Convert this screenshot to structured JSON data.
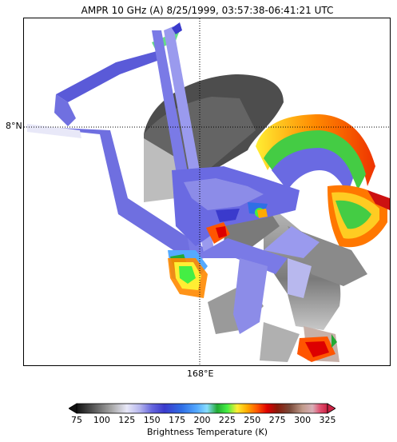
{
  "title": "AMPR 10 GHz (A) 8/25/1999, 03:57:38-06:41:21 UTC",
  "map": {
    "lat_label": "8°N",
    "lon_label": "168°E",
    "gridlines": "dotted",
    "gridline_color": "#000000"
  },
  "colorbar": {
    "label": "Brightness Temperature (K)",
    "ticks": [
      "75",
      "100",
      "125",
      "150",
      "175",
      "200",
      "225",
      "250",
      "275",
      "300",
      "325"
    ],
    "range": [
      75,
      325
    ],
    "extend": "both",
    "colors": [
      "#111111",
      "#5a5a5a",
      "#a8a8a8",
      "#e8e8f8",
      "#b8b8ee",
      "#6666dd",
      "#3a3acc",
      "#2f6fe6",
      "#55aaff",
      "#88ddff",
      "#22aa33",
      "#44ee44",
      "#ffee33",
      "#ffaa00",
      "#ff5500",
      "#dd0000",
      "#8a1a0a",
      "#7a4a3a",
      "#c09a8a",
      "#d8b0b8",
      "#e05070",
      "#cc2244"
    ]
  }
}
